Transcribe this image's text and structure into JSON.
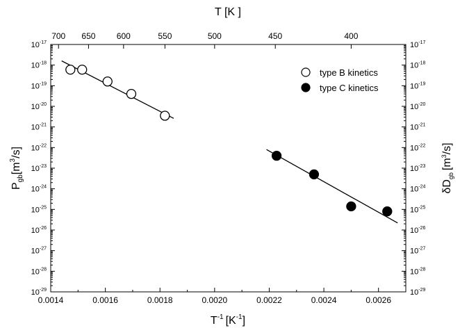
{
  "chart_data": {
    "type": "scatter",
    "bottom_axis": {
      "label_base": "T",
      "label_sup": "-1",
      "label_unit_open": "[K",
      "label_unit_sup": "-1",
      "label_unit_close": "]",
      "range": [
        0.0014,
        0.0027
      ],
      "ticks": [
        "0.0014",
        "0.0016",
        "0.0018",
        "0.0020",
        "0.0022",
        "0.0024",
        "0.0026"
      ]
    },
    "top_axis": {
      "label": "T [K ]",
      "ticks": [
        "700",
        "650",
        "600",
        "550",
        "500",
        "450",
        "400"
      ],
      "tick_values_K": [
        700,
        650,
        600,
        550,
        500,
        450,
        400
      ]
    },
    "left_axis": {
      "label_main": "P",
      "label_sub": "gb",
      "label_unit_open": "[m",
      "label_unit_sup": "3",
      "label_unit_close": "/s]",
      "scale": "log",
      "range_exp": [
        -29,
        -17
      ]
    },
    "right_axis": {
      "label_main": "δD",
      "label_sub": "gb",
      "label_unit_open": "[m",
      "label_unit_sup": "3",
      "label_unit_close": "/s]",
      "scale": "log",
      "range_exp": [
        -29,
        -17
      ]
    },
    "tick_base": "10",
    "legend_position": "top-right",
    "series": [
      {
        "name": "type B kinetics",
        "marker": "open-circle",
        "points": [
          {
            "x": 0.001472,
            "y": 6e-19
          },
          {
            "x": 0.001515,
            "y": 6e-19
          },
          {
            "x": 0.001608,
            "y": 1.6e-19
          },
          {
            "x": 0.001695,
            "y": 4e-20
          },
          {
            "x": 0.001818,
            "y": 3.5e-21
          }
        ],
        "fit_line": [
          {
            "x": 0.00144,
            "y": 1.6e-18
          },
          {
            "x": 0.00185,
            "y": 2.6e-21
          }
        ]
      },
      {
        "name": "type C kinetics",
        "marker": "filled-circle",
        "points": [
          {
            "x": 0.002227,
            "y": 4e-23
          },
          {
            "x": 0.002364,
            "y": 5e-24
          },
          {
            "x": 0.0025,
            "y": 1.4e-25
          },
          {
            "x": 0.002632,
            "y": 8e-26
          }
        ],
        "fit_line": [
          {
            "x": 0.00219,
            "y": 8e-23
          },
          {
            "x": 0.00267,
            "y": 2.2e-26
          }
        ]
      }
    ],
    "colors": {
      "axis": "#000000",
      "marker": "#000000",
      "background": "#ffffff"
    }
  }
}
